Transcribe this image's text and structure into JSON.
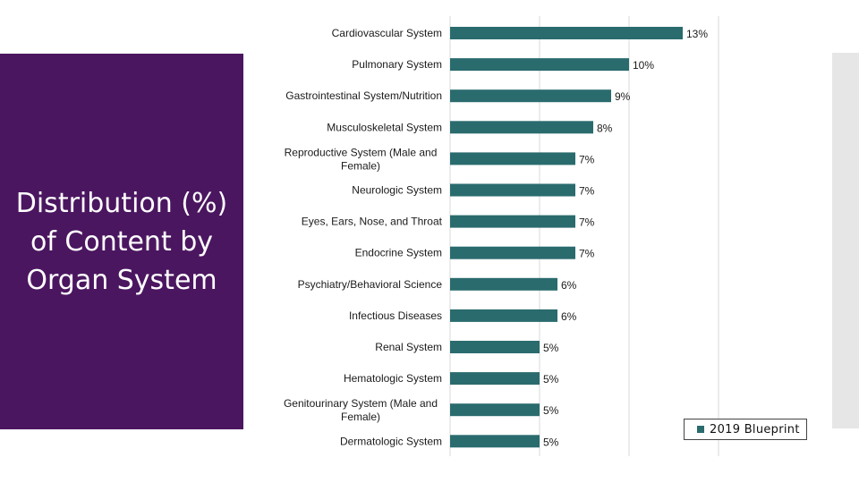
{
  "slide": {
    "title": "Distribution (%) of Content by Organ System"
  },
  "colors": {
    "title_panel": "#4b1660",
    "bar": "#2a6b6e",
    "side_bar": "#e6e6e6"
  },
  "legend": {
    "label": "2019 Blueprint"
  },
  "chart_data": {
    "type": "bar",
    "orientation": "horizontal",
    "categories": [
      "Cardiovascular System",
      "Pulmonary System",
      "Gastrointestinal System/Nutrition",
      "Musculoskeletal System",
      "Reproductive System (Male and Female)",
      "Neurologic System",
      "Eyes, Ears, Nose, and Throat",
      "Endocrine System",
      "Psychiatry/Behavioral Science",
      "Infectious Diseases",
      "Renal System",
      "Hematologic System",
      "Genitourinary System (Male and Female)",
      "Dermatologic System"
    ],
    "category_lines": [
      [
        "Cardiovascular System"
      ],
      [
        "Pulmonary System"
      ],
      [
        "Gastrointestinal System/Nutrition"
      ],
      [
        "Musculoskeletal System"
      ],
      [
        "Reproductive System (Male and",
        "Female)"
      ],
      [
        "Neurologic System"
      ],
      [
        "Eyes, Ears, Nose, and Throat"
      ],
      [
        "Endocrine System"
      ],
      [
        "Psychiatry/Behavioral Science"
      ],
      [
        "Infectious Diseases"
      ],
      [
        "Renal System"
      ],
      [
        "Hematologic System"
      ],
      [
        "Genitourinary System (Male and",
        "Female)"
      ],
      [
        "Dermatologic System"
      ]
    ],
    "series": [
      {
        "name": "2019 Blueprint",
        "values": [
          13,
          10,
          9,
          8,
          7,
          7,
          7,
          7,
          6,
          6,
          5,
          5,
          5,
          5
        ]
      }
    ],
    "value_labels": [
      "13%",
      "10%",
      "9%",
      "8%",
      "7%",
      "7%",
      "7%",
      "7%",
      "6%",
      "6%",
      "5%",
      "5%",
      "5%",
      "5%"
    ],
    "xlim": [
      0,
      15
    ],
    "grid": "vertical",
    "legend_position": "bottom-right"
  }
}
